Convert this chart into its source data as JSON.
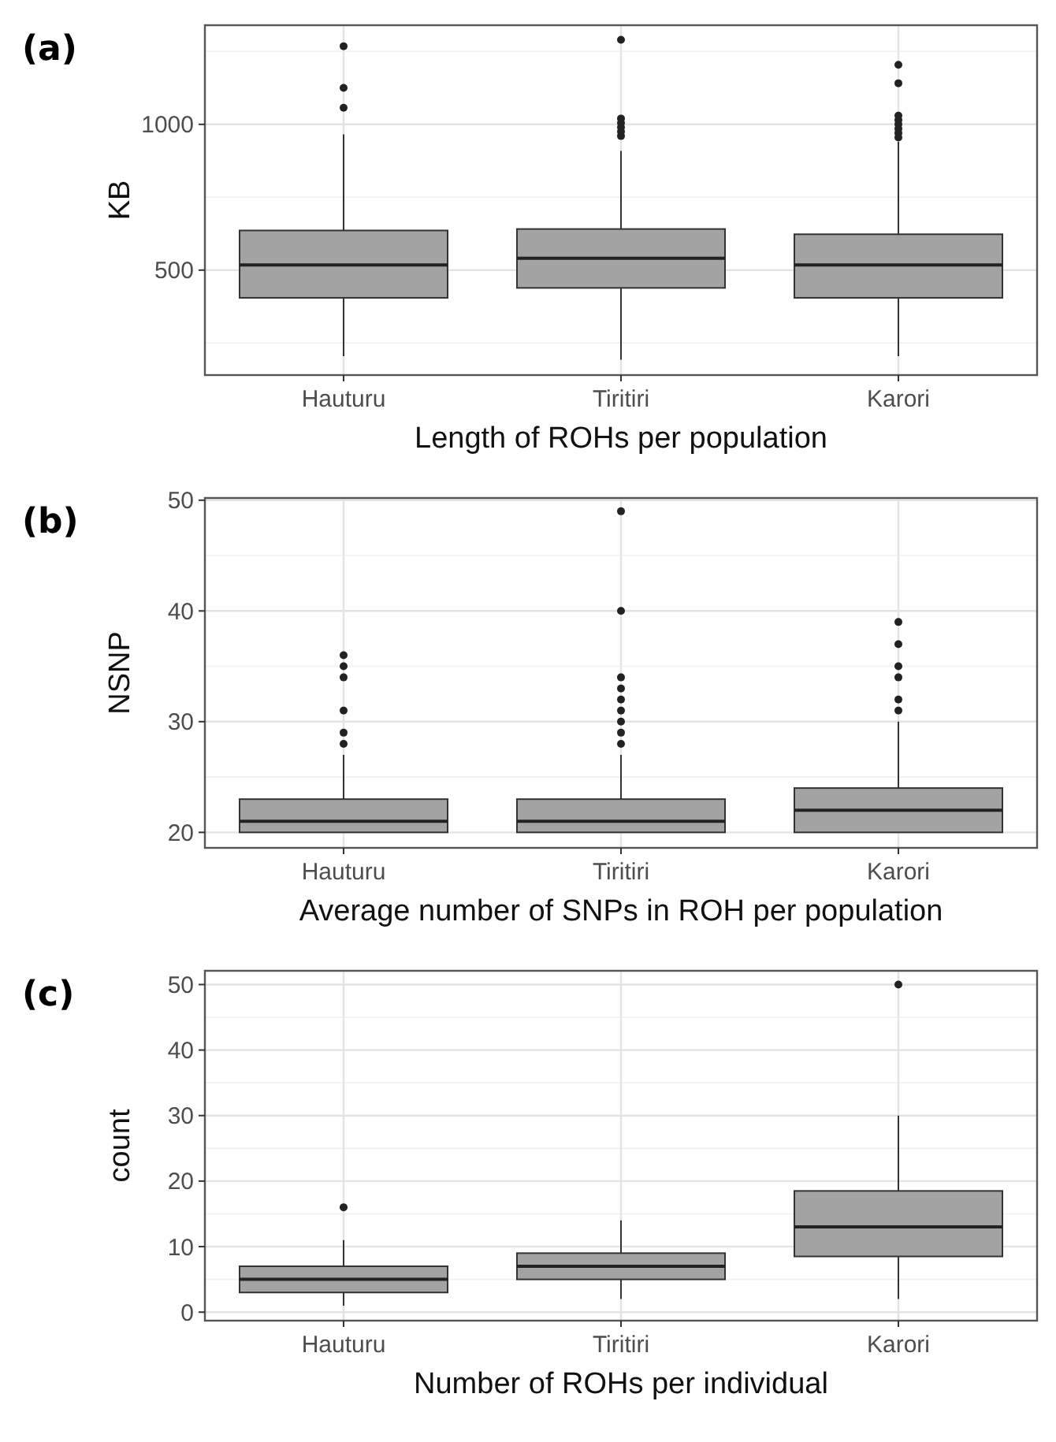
{
  "chart_data": [
    {
      "type": "box",
      "title": "(a)",
      "xlabel": "Length of ROHs per population",
      "ylabel": "KB",
      "categories": [
        "Hauturu",
        "Tiritiri",
        "Karori"
      ],
      "color": "#a3a3a3",
      "ylim": [
        140,
        1340
      ],
      "yticks": [
        500,
        1000
      ],
      "grid": true,
      "boxes": [
        {
          "low": 205,
          "q1": 405,
          "median": 518,
          "q3": 636,
          "high": 966,
          "outliers": [
            1057,
            1125,
            1268
          ]
        },
        {
          "low": 193,
          "q1": 439,
          "median": 541,
          "q3": 641,
          "high": 909,
          "outliers": [
            960,
            975,
            990,
            1005,
            1020,
            1290
          ]
        },
        {
          "low": 205,
          "q1": 405,
          "median": 518,
          "q3": 623,
          "high": 940,
          "outliers": [
            955,
            970,
            985,
            1000,
            1015,
            1030,
            1141,
            1204
          ]
        }
      ]
    },
    {
      "type": "box",
      "title": "(b)",
      "xlabel": "Average number of SNPs in ROH per population",
      "ylabel": "NSNP",
      "categories": [
        "Hauturu",
        "Tiritiri",
        "Karori"
      ],
      "color": "#a3a3a3",
      "ylim": [
        18.6,
        50.2
      ],
      "yticks": [
        20,
        30,
        40,
        50
      ],
      "grid": true,
      "boxes": [
        {
          "low": 20,
          "q1": 20,
          "median": 21,
          "q3": 23,
          "high": 27,
          "outliers": [
            28,
            29,
            31,
            34,
            35,
            36
          ]
        },
        {
          "low": 20,
          "q1": 20,
          "median": 21,
          "q3": 23,
          "high": 27,
          "outliers": [
            28,
            29,
            30,
            31,
            32,
            33,
            34,
            40,
            49
          ]
        },
        {
          "low": 20,
          "q1": 20,
          "median": 22,
          "q3": 24,
          "high": 30,
          "outliers": [
            31,
            32,
            34,
            35,
            37,
            39
          ]
        }
      ]
    },
    {
      "type": "box",
      "title": "(c)",
      "xlabel": "Number of ROHs per individual",
      "ylabel": "count",
      "categories": [
        "Hauturu",
        "Tiritiri",
        "Karori"
      ],
      "color": "#a3a3a3",
      "ylim": [
        -1.3,
        52.1
      ],
      "yticks": [
        0,
        10,
        20,
        30,
        40,
        50
      ],
      "grid": true,
      "boxes": [
        {
          "low": 1,
          "q1": 3,
          "median": 5,
          "q3": 7,
          "high": 11,
          "outliers": [
            16
          ]
        },
        {
          "low": 2,
          "q1": 5,
          "median": 7,
          "q3": 9,
          "high": 14
        },
        {
          "low": 2,
          "q1": 8.5,
          "median": 13,
          "q3": 18.5,
          "high": 30,
          "outliers": [
            50
          ]
        }
      ]
    }
  ]
}
